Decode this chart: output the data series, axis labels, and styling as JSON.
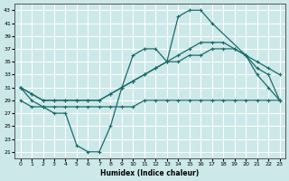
{
  "xlabel": "Humidex (Indice chaleur)",
  "bg_color": "#cce8e8",
  "grid_color": "#ffffff",
  "line_color": "#1a6b6b",
  "ylim": [
    20,
    44
  ],
  "xlim": [
    -0.5,
    23.5
  ],
  "yticks": [
    21,
    23,
    25,
    27,
    29,
    31,
    33,
    35,
    37,
    39,
    41,
    43
  ],
  "xticks": [
    0,
    1,
    2,
    3,
    4,
    5,
    6,
    7,
    8,
    9,
    10,
    11,
    12,
    13,
    14,
    15,
    16,
    17,
    18,
    19,
    20,
    21,
    22,
    23
  ],
  "lines": [
    {
      "x": [
        0,
        1,
        2,
        3,
        4,
        5,
        6,
        7,
        8,
        9,
        10,
        11,
        12,
        13,
        14,
        15,
        16,
        17,
        20,
        21,
        22,
        23
      ],
      "y": [
        31,
        29,
        28,
        27,
        27,
        22,
        21,
        21,
        25,
        31,
        36,
        37,
        37,
        35,
        42,
        43,
        43,
        41,
        36,
        33,
        31,
        29
      ]
    },
    {
      "x": [
        0,
        1,
        2,
        3,
        4,
        5,
        6,
        7,
        8,
        9,
        10,
        11,
        12,
        13,
        14,
        15,
        16,
        17,
        18,
        19,
        20,
        21,
        22,
        23
      ],
      "y": [
        29,
        28,
        28,
        28,
        28,
        28,
        28,
        28,
        28,
        28,
        28,
        29,
        29,
        29,
        29,
        29,
        29,
        29,
        29,
        29,
        29,
        29,
        29,
        29
      ]
    },
    {
      "x": [
        0,
        1,
        2,
        3,
        4,
        5,
        6,
        7,
        8,
        9,
        10,
        11,
        12,
        13,
        14,
        15,
        16,
        17,
        18,
        19,
        20,
        21,
        22,
        23
      ],
      "y": [
        31,
        30,
        29,
        29,
        29,
        29,
        29,
        29,
        30,
        31,
        32,
        33,
        34,
        35,
        35,
        36,
        36,
        37,
        37,
        37,
        36,
        35,
        34,
        33
      ]
    },
    {
      "x": [
        0,
        1,
        2,
        3,
        4,
        5,
        6,
        7,
        8,
        9,
        10,
        11,
        12,
        13,
        14,
        15,
        16,
        17,
        18,
        19,
        20,
        21,
        22,
        23
      ],
      "y": [
        31,
        30,
        29,
        29,
        29,
        29,
        29,
        29,
        30,
        31,
        32,
        33,
        34,
        35,
        36,
        37,
        38,
        38,
        38,
        37,
        36,
        34,
        33,
        29
      ]
    }
  ]
}
